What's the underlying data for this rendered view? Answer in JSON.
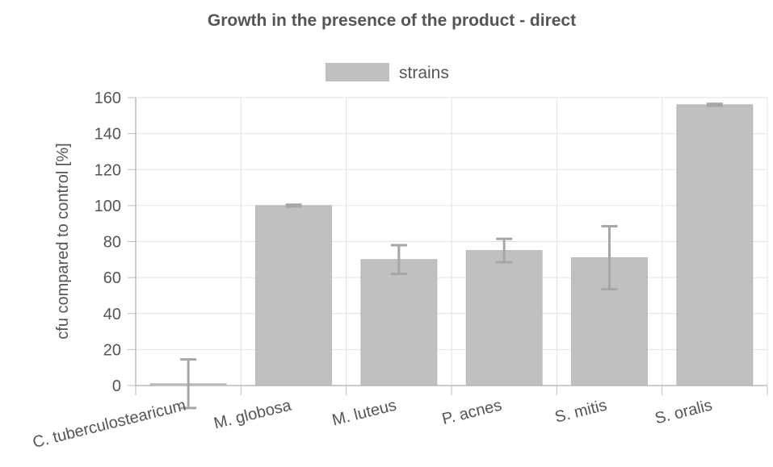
{
  "chart_data": {
    "type": "bar",
    "title": "Growth in the presence of the product - direct",
    "ylabel": "cfu compared to control [%]",
    "xlabel": "",
    "ylim": [
      0,
      160
    ],
    "yticks": [
      0,
      20,
      40,
      60,
      80,
      100,
      120,
      140,
      160
    ],
    "grid": true,
    "legend": "top-center",
    "categories": [
      "C. tuberculostearicum",
      "M. globosa",
      "M. luteus",
      "P. acnes",
      "S. mitis",
      "S. oralis"
    ],
    "series": [
      {
        "name": "strains",
        "color": "#c0c0c0",
        "values": [
          1,
          100,
          70,
          75,
          71,
          156
        ],
        "error": [
          13.5,
          0.5,
          8,
          6.5,
          17.5,
          0.5
        ]
      }
    ]
  }
}
